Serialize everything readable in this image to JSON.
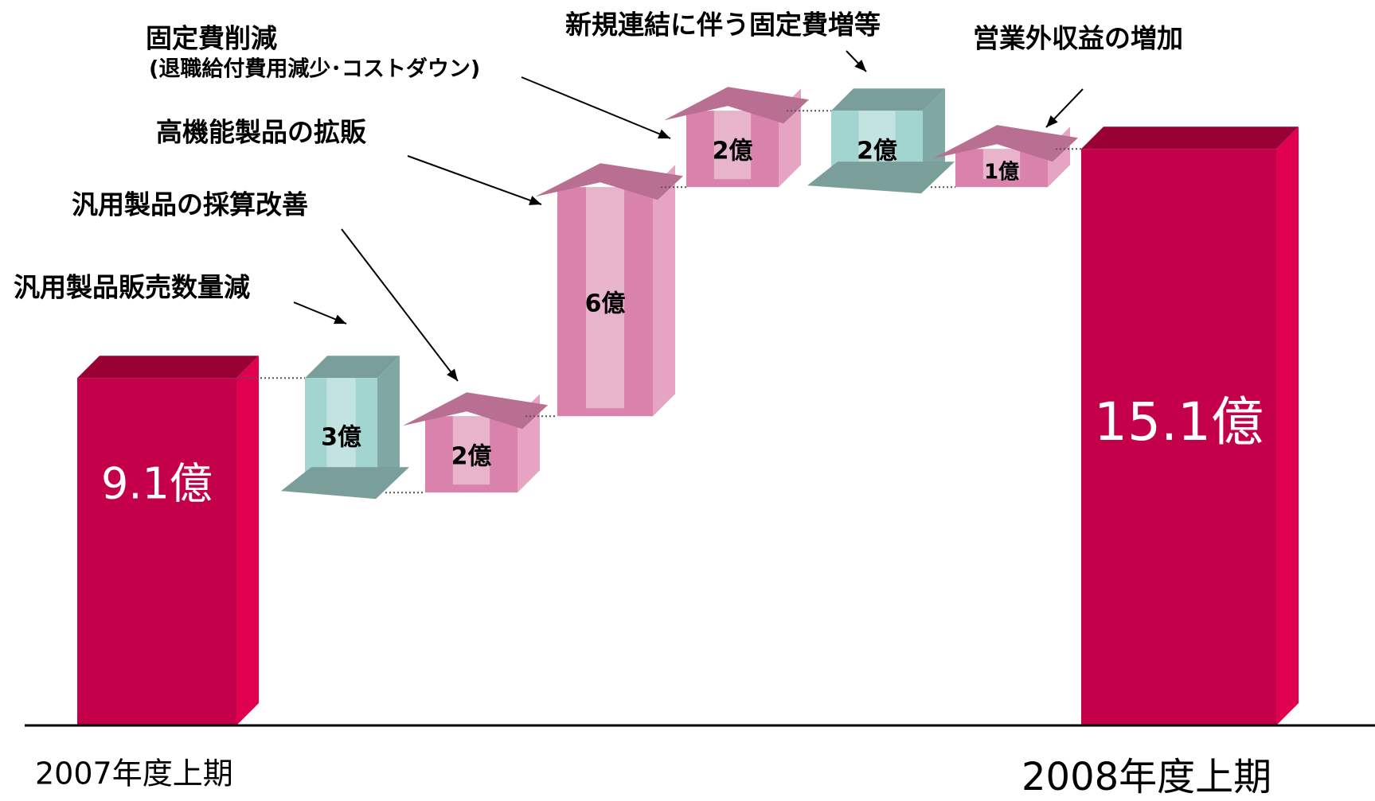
{
  "chart_data": {
    "type": "waterfall",
    "categories": [
      "2007年度上期",
      "汎用製品販売数量減",
      "汎用製品の採算改善",
      "高機能製品の拡販",
      "固定費削減",
      "新規連結に伴う固定費増等",
      "営業外収益の増加",
      "2008年度上期"
    ],
    "category_notes": [
      null,
      null,
      null,
      null,
      "(退職給付費用減少･コストダウン)",
      null,
      null,
      null
    ],
    "values": [
      9.1,
      -3,
      2,
      6,
      2,
      -2,
      1,
      15.1
    ],
    "value_labels": [
      "9.1億",
      "3億",
      "2億",
      "6億",
      "2億",
      "2億",
      "1億",
      "15.1億"
    ],
    "total_color": "#c4004a",
    "increase_color": "#d982ab",
    "decrease_color": "#a3d5d0"
  }
}
